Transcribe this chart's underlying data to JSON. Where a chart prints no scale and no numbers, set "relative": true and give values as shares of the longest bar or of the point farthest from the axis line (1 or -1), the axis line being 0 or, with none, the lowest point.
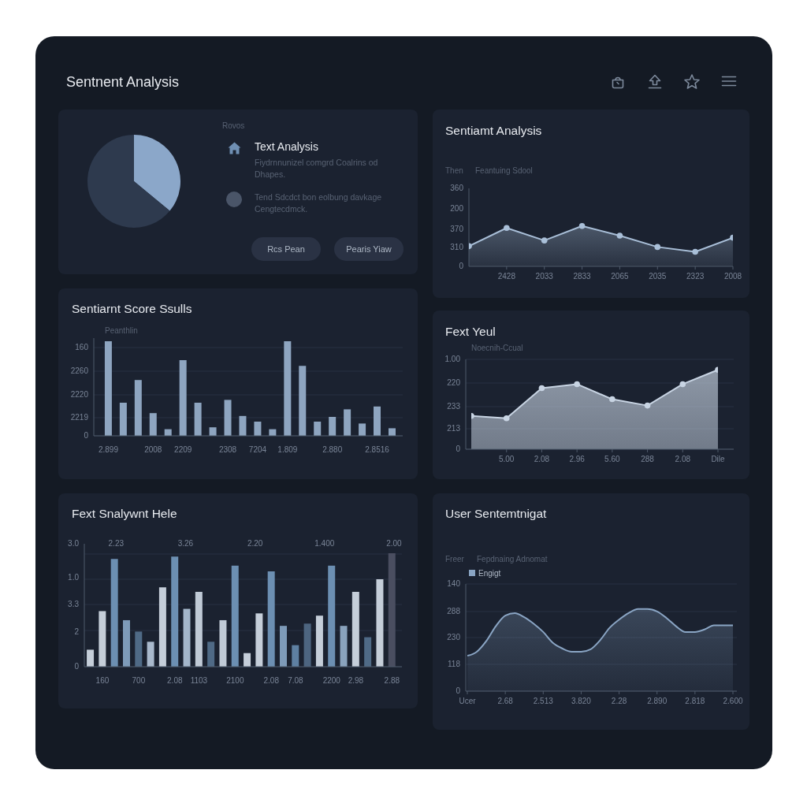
{
  "chart_data": [
    {
      "type": "other",
      "title": "Sentnent Analysis"
    },
    {
      "type": "pie",
      "categories": [
        null,
        null
      ],
      "values": [
        36,
        64
      ],
      "colors": [
        "#8ba7c9",
        "#2e3a4e"
      ]
    },
    {
      "type": "other",
      "title": "Text Analysis",
      "annotations": [
        "Rovos",
        "Fiydrnnunizel comgrd Coalrins od Dhapes.",
        "Tend Sdcdct bon eolbung davkage Cengtecdmck.",
        "Rcs Pean",
        "Pearis Yiaw"
      ]
    },
    {
      "type": "area",
      "relative": true,
      "title": "Sentiamt Analysis",
      "ylabel": "Then",
      "subtitle": "Feantuing Sdool",
      "categories": [
        null,
        "2428",
        "2033",
        "2833",
        "2065",
        "2035",
        "2323",
        "2008"
      ],
      "values": [
        0.5,
        0.95,
        0.64,
        1,
        0.76,
        0.48,
        0.36,
        0.71
      ],
      "color": "#a9bfd8",
      "marker": "circle",
      "annotations": [
        "360",
        "200",
        "370",
        "310",
        "0"
      ]
    },
    {
      "type": "bar",
      "relative": true,
      "title": "Sentiarnt Score Ssulls",
      "subtitle": "Peanthlin",
      "categories": [
        "2.899",
        null,
        null,
        "2008",
        null,
        "2209",
        null,
        null,
        "2308",
        null,
        "7204",
        null,
        "1.809",
        null,
        null,
        "2.880",
        null,
        null,
        "2.8516",
        null
      ],
      "values": [
        1,
        0.35,
        0.59,
        0.24,
        0.07,
        0.8,
        0.35,
        0.09,
        0.38,
        0.21,
        0.15,
        0.07,
        1,
        0.74,
        0.15,
        0.2,
        0.28,
        0.13,
        0.31,
        0.08
      ],
      "color": "#8ea5c0",
      "grid": "y",
      "annotations": [
        "160",
        "2260",
        "2220",
        "2219",
        "0"
      ]
    },
    {
      "type": "area",
      "relative": true,
      "title": "Fext Yeul",
      "subtitle": "Noecnih-Ccual",
      "categories": [
        null,
        "5.00",
        "2.08",
        "2.96",
        "5.60",
        "288",
        "2.08",
        "Dile"
      ],
      "values": [
        0.42,
        0.39,
        0.77,
        0.82,
        0.63,
        0.55,
        0.82,
        1
      ],
      "color": "#c8d4e3",
      "grid": "y",
      "marker": "circle",
      "annotations": [
        "1.00",
        "220",
        "233",
        "213",
        "0"
      ]
    },
    {
      "type": "bar",
      "relative": true,
      "title": "Fext Snalywnt Hele",
      "categories": [
        null,
        "160",
        null,
        null,
        "700",
        null,
        null,
        "2.08",
        null,
        "1103",
        null,
        null,
        "2100",
        null,
        null,
        "2.08",
        null,
        "7.08",
        null,
        null,
        "2200",
        null,
        "2.98",
        null,
        null,
        "2.88"
      ],
      "values": [
        0.15,
        0.49,
        0.95,
        0.41,
        0.31,
        0.22,
        0.7,
        0.97,
        0.51,
        0.66,
        0.22,
        0.41,
        0.89,
        0.12,
        0.47,
        0.84,
        0.36,
        0.19,
        0.38,
        0.45,
        0.89,
        0.36,
        0.66,
        0.26,
        0.77,
        1
      ],
      "colors": [
        "#c5ced9",
        "#c5ced9",
        "#6c8fb2",
        "#7e9bb9",
        "#4f6a86",
        "#a9b9cc",
        "#c5ced9",
        "#6c8fb2",
        "#a4b6ca",
        "#c0cad6",
        "#4f6a86",
        "#c0cad6",
        "#6c8fb2",
        "#c5ced9",
        "#c5ced9",
        "#6c8fb2",
        "#7e9bb9",
        "#5e80a2",
        "#4d6580",
        "#c5ced9",
        "#6c8fb2",
        "#8aa3bd",
        "#c5ced9",
        "#4f6a86",
        "#c5ced9",
        "#4a4e60"
      ],
      "grid": "y",
      "annotations": [
        "3.0",
        "1.0",
        "3.3",
        "2",
        "0",
        "2.23",
        "3.26",
        "2.20",
        "1.400",
        "2.00"
      ]
    },
    {
      "type": "area",
      "relative": true,
      "title": "User Sentemtnigat",
      "ylabel": "Freer",
      "subtitle": "Fepdnaing Adnomat",
      "categories": [
        "Ucer",
        null,
        null,
        null,
        "2.68",
        null,
        null,
        null,
        "2.513",
        null,
        null,
        null,
        "3.820",
        null,
        null,
        null,
        "2.28",
        null,
        null,
        null,
        "2.890",
        null,
        null,
        null,
        "2.818",
        null,
        null,
        null,
        "2.600"
      ],
      "series": [
        {
          "name": "Engigt",
          "color": "#8aa5c4",
          "values": [
            0.43,
            0.48,
            0.61,
            0.79,
            0.92,
            0.95,
            0.9,
            0.82,
            0.72,
            0.59,
            0.52,
            0.48,
            0.48,
            0.51,
            0.62,
            0.77,
            0.87,
            0.95,
            1,
            1,
            0.97,
            0.89,
            0.79,
            0.72,
            0.72,
            0.75,
            0.8,
            0.8,
            0.8
          ]
        }
      ],
      "grid": "y",
      "legend": "top left",
      "annotations": [
        "140",
        "288",
        "230",
        "118",
        "0"
      ]
    }
  ]
}
